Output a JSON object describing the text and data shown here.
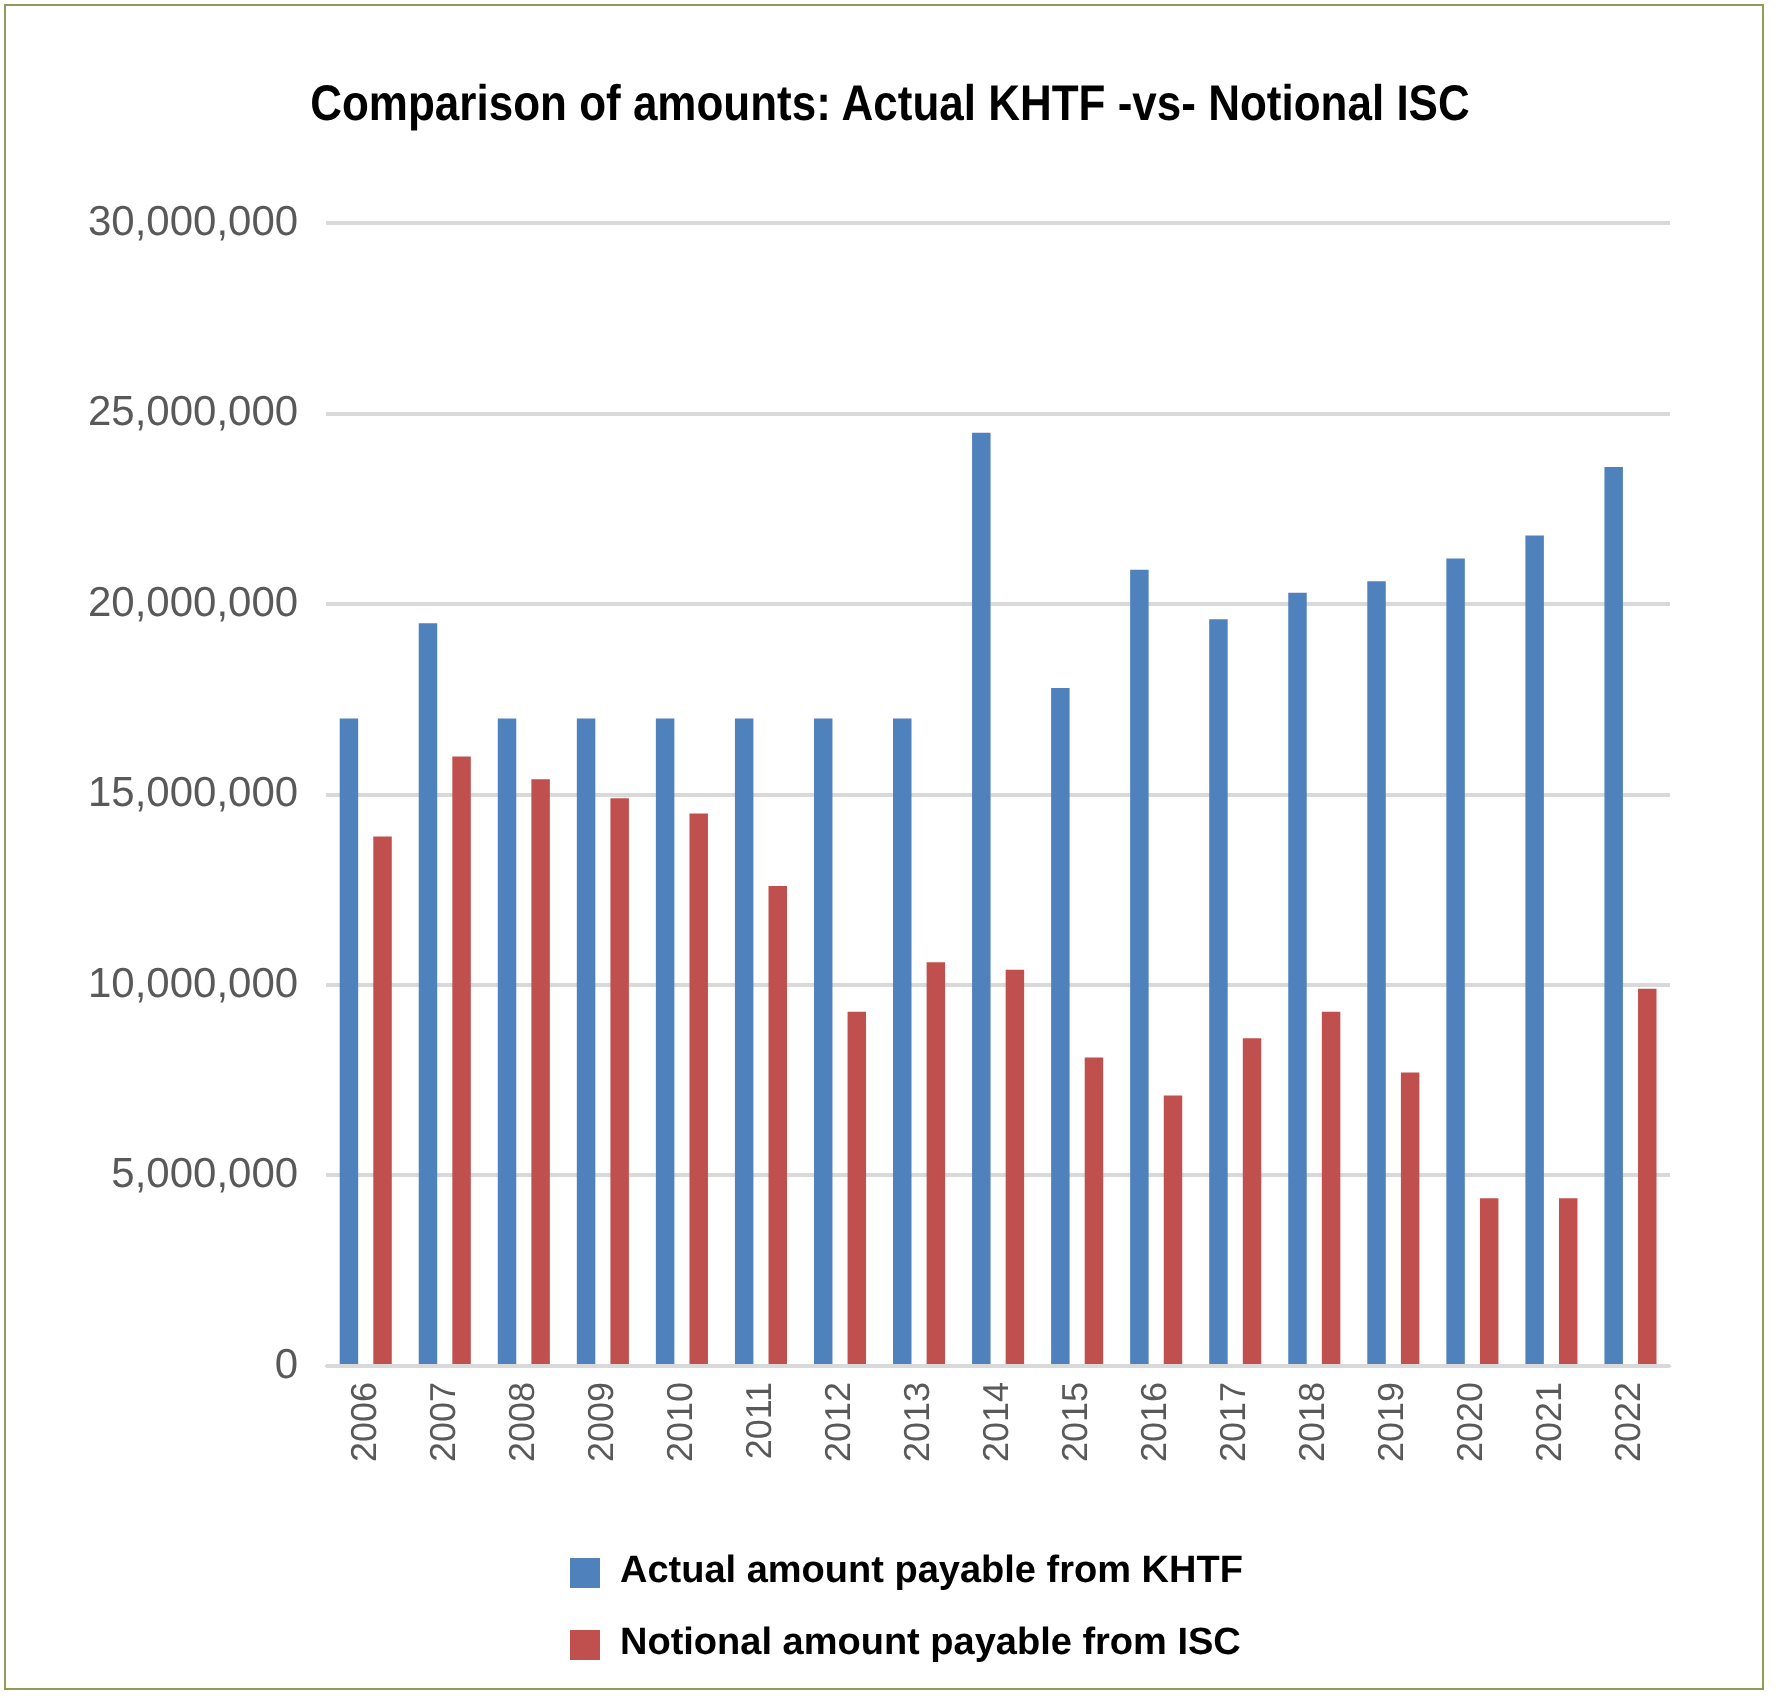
{
  "chart_data": {
    "type": "bar",
    "title": "Comparison of amounts: Actual KHTF -vs- Notional ISC",
    "categories": [
      "2006",
      "2007",
      "2008",
      "2009",
      "2010",
      "2011",
      "2012",
      "2013",
      "2014",
      "2015",
      "2016",
      "2017",
      "2018",
      "2019",
      "2020",
      "2021",
      "2022"
    ],
    "series": [
      {
        "name": "Actual amount payable from KHTF",
        "color": "#4f81bd",
        "values": [
          17000000,
          19500000,
          17000000,
          17000000,
          17000000,
          17000000,
          17000000,
          17000000,
          24500000,
          17800000,
          20900000,
          19600000,
          20300000,
          20600000,
          21200000,
          21800000,
          23600000
        ]
      },
      {
        "name": "Notional amount payable from ISC",
        "color": "#c0504d",
        "values": [
          13900000,
          16000000,
          15400000,
          14900000,
          14500000,
          12600000,
          9300000,
          10600000,
          10400000,
          8100000,
          7100000,
          8600000,
          9300000,
          7700000,
          4400000,
          4400000,
          9900000
        ]
      }
    ],
    "ylim": [
      0,
      30000000
    ],
    "yticks": [
      0,
      {
        "value": 5000000,
        "label": "5,000,000"
      },
      {
        "value": 10000000,
        "label": "10,000,000"
      },
      {
        "value": 15000000,
        "label": "15,000,000"
      },
      {
        "value": 20000000,
        "label": "20,000,000"
      },
      {
        "value": 25000000,
        "label": "25,000,000"
      },
      {
        "value": 30000000,
        "label": "30,000,000"
      }
    ],
    "grid": "y",
    "legend": "bottom"
  }
}
